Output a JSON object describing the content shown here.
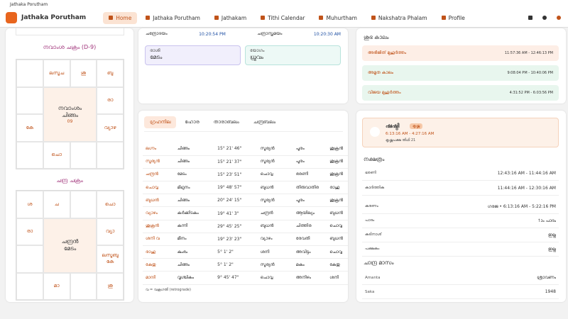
{
  "window_title": "Jathaka Porutham",
  "nav": {
    "app_name": "Jathaka Porutham",
    "tabs": [
      "Home",
      "Jathaka Porutham",
      "Jathakam",
      "Tithi Calendar",
      "Muhurtham",
      "Nakshatra Phalam",
      "Profile"
    ]
  },
  "charts": [
    {
      "title": "നവാംശ ചക്രം (D-9)",
      "center": [
        "നവാംശം",
        "ചിങ്ങം",
        "09"
      ],
      "houses": [
        null,
        "ലസൂച",
        "ശു",
        "ബു",
        "രാ",
        "വ്യാഴ",
        null,
        null,
        "ചൊ",
        null,
        "കേ",
        null
      ]
    },
    {
      "title": "ചന്ദ്ര ചക്രം",
      "center": [
        "ചന്ദ്രൻ",
        "മേടം"
      ],
      "houses": [
        "ശ",
        "ച",
        null,
        "ചൊ",
        "വ്യാ",
        "ലസൂബു കേ",
        "ശു",
        null,
        "മാ",
        null,
        null,
        "രാ"
      ]
    }
  ],
  "moon": {
    "rise_label": "ചന്ദ്രോദയം",
    "rise": "10:20:54 PM",
    "set_label": "ചന്ദ്രാസ്തമയം",
    "set": "10:20:30 AM",
    "rasi_label": "രാശി",
    "rasi": "മേടം",
    "yoga_label": "യോഗം",
    "yoga": "ധ്രുവം"
  },
  "planets": {
    "tabs": [
      "ഗ്രഹനില",
      "ഹോര",
      "താരാബലം",
      "ചന്ദ്രബലം"
    ],
    "rows": [
      [
        "ലഗ്നം",
        "ചിങ്ങം",
        "15° 21' 46\"",
        "സൂര്യൻ",
        "പൂരം",
        "ശുക്രൻ"
      ],
      [
        "സൂര്യൻ",
        "ചിങ്ങം",
        "15° 21' 37\"",
        "സൂര്യൻ",
        "പൂരം",
        "ശുക്രൻ"
      ],
      [
        "ചന്ദ്രൻ",
        "മേടം",
        "15° 23' 51\"",
        "ചൊവ്വ",
        "ഭരണി",
        "ശുക്രൻ"
      ],
      [
        "ചൊവ്വ",
        "മിഥുനം",
        "19° 48' 57\"",
        "ബുധൻ",
        "തിരുവാതിര",
        "രാഹു"
      ],
      [
        "ബുധൻ",
        "ചിങ്ങം",
        "20° 24' 15\"",
        "സൂര്യൻ",
        "പൂരം",
        "ശുക്രൻ"
      ],
      [
        "വ്യാഴം",
        "കർക്കിടകം",
        "19° 41' 3\"",
        "ചന്ദ്രൻ",
        "ആയില്യം",
        "ബുധൻ"
      ],
      [
        "ശുക്രൻ",
        "കന്നി",
        "29° 45' 25\"",
        "ബുധൻ",
        "ചിത്തിര",
        "ചൊവ്വ"
      ],
      [
        "ശനി വ",
        "മീനം",
        "19° 23' 23\"",
        "വ്യാഴം",
        "രേവതി",
        "ബുധൻ"
      ],
      [
        "രാഹു",
        "കുംഭം",
        "5° 1' 2\"",
        "ശനി",
        "അവിട്ടം",
        "ചൊവ്വ"
      ],
      [
        "കേതു",
        "ചിങ്ങം",
        "5° 1' 2\"",
        "സൂര്യൻ",
        "മകം",
        "കേതു"
      ],
      [
        "മാന്ദി",
        "വൃശ്ചികം",
        "9° 45' 47\"",
        "ചൊവ്വ",
        "അനിഴം",
        "ശനി"
      ]
    ],
    "note": "വ = വക്രഗതി (retrograde)"
  },
  "shubha": {
    "title": "ശുഭ കാലം",
    "items": [
      {
        "name": "അഭിജിത് മുഹൂർത്തം",
        "time": "11:57:36 AM - 12:46:13 PM"
      },
      {
        "name": "അമൃത കാലം",
        "time": "9:08:04 PM - 10:40:06 PM"
      },
      {
        "name": "വിജയ മുഹൂർത്തം",
        "time": "4:31:52 PM - 6:03:56 PM"
      }
    ]
  },
  "tithi": {
    "name": "ഷഷ്ഠി",
    "badge": "കൃഷ്ണ",
    "time": "6:13:16 AM - 4:27:16 AM",
    "sub": "കൃഷ്ണപക്ഷ തിഥി 21"
  },
  "nakshatra": {
    "title": "നക്ഷത്രം",
    "rows": [
      [
        "ഭരണി",
        "12:43:16 AM - 11:44:16 AM"
      ],
      [
        "കാർത്തിക",
        "11:44:16 AM - 12:30:16 AM"
      ]
    ],
    "details": [
      [
        "കരണം",
        "ഗരജ • 6:13:16 AM - 5:22:16 PM"
      ],
      [
        "പാദം",
        "1ാം പാദം"
      ],
      [
        "കടിനാശ്",
        "ഇല്ല"
      ],
      [
        "പക്ഷകം",
        "ഇല്ല"
      ]
    ]
  },
  "masam": {
    "title": "ചാന്ദ്ര മാസം",
    "rows": [
      [
        "Amanta",
        "ശ്രാവണം"
      ],
      [
        "Saka",
        "1948"
      ]
    ]
  }
}
